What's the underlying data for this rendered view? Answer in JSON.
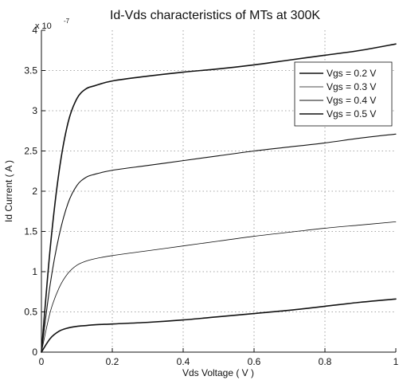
{
  "chart_data": {
    "type": "line",
    "title": "Id-Vds characteristics of MTs at 300K",
    "xlabel": "Vds Voltage ( V )",
    "ylabel": "Id Current ( A )",
    "y_multiplier_base": "x 10",
    "y_multiplier_exponent": "-7",
    "xlim": [
      0,
      1
    ],
    "ylim": [
      0,
      4
    ],
    "x_ticks": [
      0,
      0.2,
      0.4,
      0.6,
      0.8,
      1
    ],
    "x_tick_labels": [
      "0",
      "0.2",
      "0.4",
      "0.6",
      "0.8",
      "1"
    ],
    "y_ticks": [
      0,
      0.5,
      1,
      1.5,
      2,
      2.5,
      3,
      3.5,
      4
    ],
    "y_tick_labels": [
      "0",
      "0.5",
      "1",
      "1.5",
      "2",
      "2.5",
      "3",
      "3.5",
      "4"
    ],
    "grid": true,
    "legend_position": "top-right",
    "x": [
      0,
      0.025,
      0.05,
      0.075,
      0.1,
      0.125,
      0.15,
      0.2,
      0.3,
      0.4,
      0.5,
      0.6,
      0.7,
      0.8,
      0.9,
      1.0
    ],
    "series": [
      {
        "name": "Vgs = 0.2 V",
        "values": [
          0,
          0.17,
          0.26,
          0.3,
          0.32,
          0.33,
          0.34,
          0.35,
          0.37,
          0.4,
          0.44,
          0.48,
          0.52,
          0.57,
          0.62,
          0.66
        ]
      },
      {
        "name": "Vgs = 0.3 V",
        "values": [
          0,
          0.5,
          0.8,
          0.98,
          1.08,
          1.13,
          1.16,
          1.2,
          1.26,
          1.32,
          1.38,
          1.44,
          1.49,
          1.54,
          1.58,
          1.62
        ]
      },
      {
        "name": "Vgs = 0.4 V",
        "values": [
          0,
          0.85,
          1.45,
          1.85,
          2.07,
          2.17,
          2.21,
          2.26,
          2.32,
          2.38,
          2.44,
          2.5,
          2.55,
          2.6,
          2.66,
          2.71
        ]
      },
      {
        "name": "Vgs = 0.5 V",
        "values": [
          0,
          1.3,
          2.25,
          2.85,
          3.15,
          3.27,
          3.31,
          3.37,
          3.43,
          3.48,
          3.52,
          3.57,
          3.63,
          3.69,
          3.75,
          3.83
        ]
      }
    ],
    "colors": {
      "line": "#111111",
      "grid": "#8a8a8a",
      "axis": "#111111"
    }
  }
}
